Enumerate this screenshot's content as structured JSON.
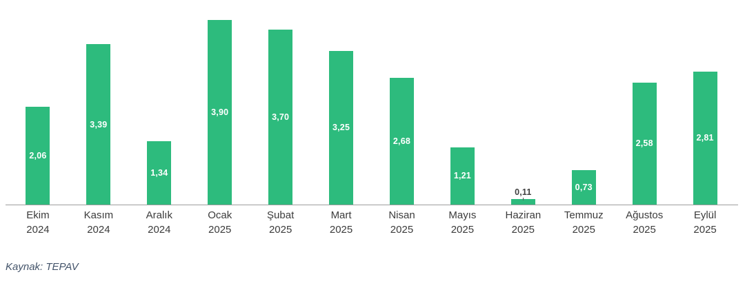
{
  "chart_data": {
    "type": "bar",
    "title": "",
    "xlabel": "",
    "ylabel": "",
    "ylim": [
      0,
      4
    ],
    "grid": false,
    "legend": false,
    "categories": [
      {
        "month": "Ekim",
        "year": "2024"
      },
      {
        "month": "Kasım",
        "year": "2024"
      },
      {
        "month": "Aralık",
        "year": "2024"
      },
      {
        "month": "Ocak",
        "year": "2025"
      },
      {
        "month": "Şubat",
        "year": "2025"
      },
      {
        "month": "Mart",
        "year": "2025"
      },
      {
        "month": "Nisan",
        "year": "2025"
      },
      {
        "month": "Mayıs",
        "year": "2025"
      },
      {
        "month": "Haziran",
        "year": "2025"
      },
      {
        "month": "Temmuz",
        "year": "2025"
      },
      {
        "month": "Ağustos",
        "year": "2025"
      },
      {
        "month": "Eylül",
        "year": "2025"
      }
    ],
    "values": [
      2.06,
      3.39,
      1.34,
      3.9,
      3.7,
      3.25,
      2.68,
      1.21,
      0.11,
      0.73,
      2.58,
      2.81
    ],
    "value_labels": [
      "2,06",
      "3,39",
      "1,34",
      "3,90",
      "3,70",
      "3,25",
      "2,68",
      "1,21",
      "0,11",
      "0,73",
      "2,58",
      "2,81"
    ],
    "bar_color": "#2DBB7D",
    "label_color_inside": "#FFFFFF",
    "label_color_outside": "#404040",
    "axis_line_color": "#9d9d9d"
  },
  "source": {
    "text": "Kaynak: TEPAV",
    "color": "#44546A"
  }
}
